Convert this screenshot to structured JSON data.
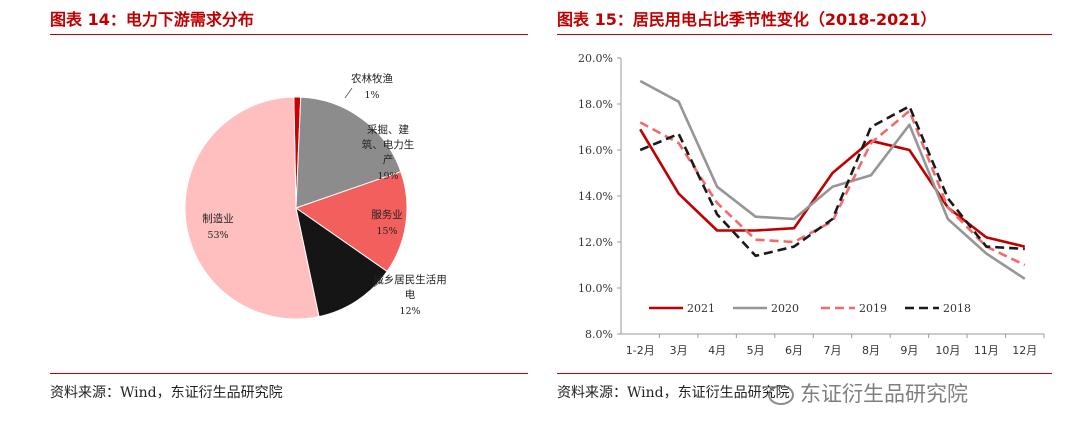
{
  "left": {
    "title": "图表 14：电力下游需求分布",
    "source": "资料来源：Wind，东证衍生品研究院"
  },
  "right": {
    "title": "图表 15：居民用电占比季节性变化（2018-2021）",
    "source": "资料来源：Wind，东证衍生品研究院"
  },
  "watermark": "东证衍生品研究院",
  "chart_data": [
    {
      "type": "pie",
      "title": "图表 14：电力下游需求分布",
      "slices": [
        {
          "label": "农林牧渔",
          "value": 1,
          "value_label": "1%",
          "color": "#cc0000"
        },
        {
          "label": "采掘、建筑、电力生产",
          "label_lines": [
            "采掘、建",
            "筑、电力生",
            "产"
          ],
          "value": 19,
          "value_label": "19%",
          "color": "#8c8c8c"
        },
        {
          "label": "服务业",
          "value": 15,
          "value_label": "15%",
          "color": "#f25f5c"
        },
        {
          "label": "城乡居民生活用电",
          "label_lines": [
            "城乡居民生活用",
            "电"
          ],
          "value": 12,
          "value_label": "12%",
          "color": "#151515"
        },
        {
          "label": "制造业",
          "value": 53,
          "value_label": "53%",
          "color": "#ffbfbf"
        }
      ]
    },
    {
      "type": "line",
      "title": "图表 15：居民用电占比季节性变化（2018-2021）",
      "categories": [
        "1-2月",
        "3月",
        "4月",
        "5月",
        "6月",
        "7月",
        "8月",
        "9月",
        "10月",
        "11月",
        "12月"
      ],
      "yticks": [
        "8.0%",
        "10.0%",
        "12.0%",
        "14.0%",
        "16.0%",
        "18.0%",
        "20.0%"
      ],
      "ylim": [
        8,
        20
      ],
      "legend_position": "bottom-inside",
      "series": [
        {
          "name": "2021",
          "color": "#c00000",
          "dash": "solid",
          "values": [
            16.9,
            14.1,
            12.5,
            12.5,
            12.6,
            15.0,
            16.4,
            16.0,
            13.5,
            12.2,
            11.8
          ]
        },
        {
          "name": "2020",
          "color": "#969696",
          "dash": "solid",
          "values": [
            19.0,
            18.1,
            14.4,
            13.1,
            13.0,
            14.4,
            14.9,
            17.1,
            13.0,
            11.5,
            10.4
          ]
        },
        {
          "name": "2019",
          "color": "#f26b6b",
          "dash": "dashed",
          "values": [
            17.2,
            16.3,
            13.7,
            12.1,
            12.0,
            12.9,
            16.3,
            17.7,
            13.5,
            11.8,
            11.0
          ]
        },
        {
          "name": "2018",
          "color": "#1a1a1a",
          "dash": "dashed",
          "values": [
            16.0,
            16.7,
            13.2,
            11.4,
            11.8,
            13.0,
            17.0,
            17.9,
            13.9,
            11.8,
            11.7
          ]
        }
      ]
    }
  ]
}
